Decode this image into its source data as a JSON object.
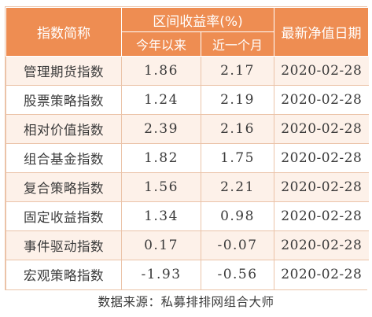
{
  "header": {
    "col_name": "指数简称",
    "col_return": "区间收益率(%)",
    "col_ytd": "今年以来",
    "col_month": "近一个月",
    "col_date": "最新净值日期"
  },
  "rows": [
    {
      "name": "管理期货指数",
      "ytd": "1.86",
      "month": "2.17",
      "date": "2020-02-28"
    },
    {
      "name": "股票策略指数",
      "ytd": "1.24",
      "month": "2.19",
      "date": "2020-02-28"
    },
    {
      "name": "相对价值指数",
      "ytd": "2.39",
      "month": "2.16",
      "date": "2020-02-28"
    },
    {
      "name": "组合基金指数",
      "ytd": "1.82",
      "month": "1.75",
      "date": "2020-02-28"
    },
    {
      "name": "复合策略指数",
      "ytd": "1.56",
      "month": "2.21",
      "date": "2020-02-28"
    },
    {
      "name": "固定收益指数",
      "ytd": "1.34",
      "month": "0.98",
      "date": "2020-02-28"
    },
    {
      "name": "事件驱动指数",
      "ytd": "0.17",
      "month": "-0.07",
      "date": "2020-02-28"
    },
    {
      "name": "宏观策略指数",
      "ytd": "-1.93",
      "month": "-0.56",
      "date": "2020-02-28"
    }
  ],
  "footer": {
    "source": "数据来源：私募排排网组合大师"
  },
  "colors": {
    "header_bg": "#ee8d52",
    "row_alt_bg": "#fdf1e9",
    "border": "#ebc3a8"
  }
}
